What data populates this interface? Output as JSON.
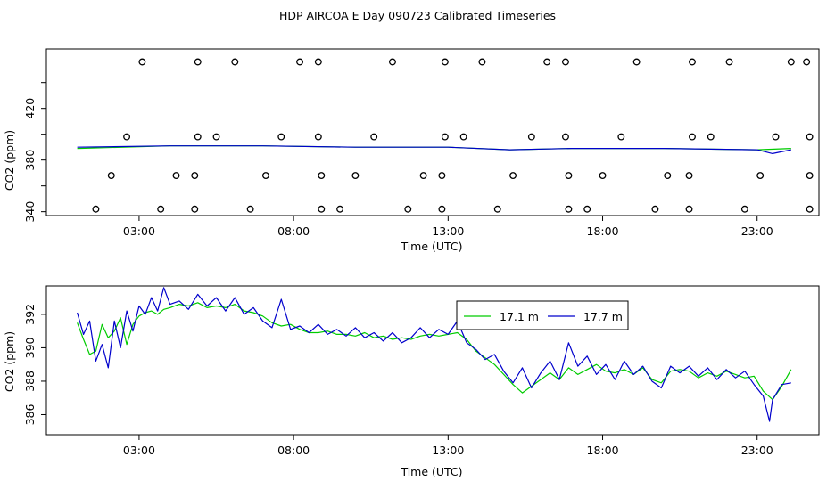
{
  "chart_data": [
    {
      "type": "scatter",
      "title": "HDP AIRCOA E  Day 090723  Calibrated Timeseries",
      "xlabel": "Time (UTC)",
      "ylabel": "CO2 (ppm)",
      "xlim": [
        0,
        25
      ],
      "ylim": [
        337,
        466
      ],
      "x_ticks": [
        3,
        8,
        13,
        18,
        23
      ],
      "x_tick_labels": [
        "03:00",
        "08:00",
        "13:00",
        "18:00",
        "23:00"
      ],
      "y_ticks": [
        340,
        380,
        420
      ],
      "y_tick_labels": [
        "340",
        "380",
        "420"
      ],
      "y_minor_ticks": [
        360,
        400,
        440
      ],
      "calibration_points": [
        {
          "x": 1.6,
          "y": 342
        },
        {
          "x": 2.1,
          "y": 368
        },
        {
          "x": 2.6,
          "y": 398
        },
        {
          "x": 3.1,
          "y": 456
        },
        {
          "x": 3.7,
          "y": 342
        },
        {
          "x": 4.2,
          "y": 368
        },
        {
          "x": 4.8,
          "y": 342
        },
        {
          "x": 4.8,
          "y": 368
        },
        {
          "x": 4.9,
          "y": 398
        },
        {
          "x": 4.9,
          "y": 456
        },
        {
          "x": 5.5,
          "y": 398
        },
        {
          "x": 6.1,
          "y": 456
        },
        {
          "x": 6.6,
          "y": 342
        },
        {
          "x": 7.1,
          "y": 368
        },
        {
          "x": 7.6,
          "y": 398
        },
        {
          "x": 8.2,
          "y": 456
        },
        {
          "x": 8.8,
          "y": 456
        },
        {
          "x": 8.8,
          "y": 398
        },
        {
          "x": 8.9,
          "y": 368
        },
        {
          "x": 8.9,
          "y": 342
        },
        {
          "x": 9.5,
          "y": 342
        },
        {
          "x": 10.0,
          "y": 368
        },
        {
          "x": 10.6,
          "y": 398
        },
        {
          "x": 11.2,
          "y": 456
        },
        {
          "x": 11.7,
          "y": 342
        },
        {
          "x": 12.2,
          "y": 368
        },
        {
          "x": 12.8,
          "y": 342
        },
        {
          "x": 12.8,
          "y": 368
        },
        {
          "x": 12.9,
          "y": 398
        },
        {
          "x": 12.9,
          "y": 456
        },
        {
          "x": 13.5,
          "y": 398
        },
        {
          "x": 14.1,
          "y": 456
        },
        {
          "x": 14.6,
          "y": 342
        },
        {
          "x": 15.1,
          "y": 368
        },
        {
          "x": 15.7,
          "y": 398
        },
        {
          "x": 16.2,
          "y": 456
        },
        {
          "x": 16.8,
          "y": 456
        },
        {
          "x": 16.8,
          "y": 398
        },
        {
          "x": 16.9,
          "y": 368
        },
        {
          "x": 16.9,
          "y": 342
        },
        {
          "x": 17.5,
          "y": 342
        },
        {
          "x": 18.0,
          "y": 368
        },
        {
          "x": 18.6,
          "y": 398
        },
        {
          "x": 19.1,
          "y": 456
        },
        {
          "x": 19.7,
          "y": 342
        },
        {
          "x": 20.1,
          "y": 368
        },
        {
          "x": 20.8,
          "y": 342
        },
        {
          "x": 20.8,
          "y": 368
        },
        {
          "x": 20.9,
          "y": 398
        },
        {
          "x": 20.9,
          "y": 456
        },
        {
          "x": 21.5,
          "y": 398
        },
        {
          "x": 22.1,
          "y": 456
        },
        {
          "x": 22.6,
          "y": 342
        },
        {
          "x": 23.1,
          "y": 368
        },
        {
          "x": 23.6,
          "y": 398
        },
        {
          "x": 24.1,
          "y": 456
        },
        {
          "x": 24.6,
          "y": 456
        },
        {
          "x": 24.7,
          "y": 398
        },
        {
          "x": 24.7,
          "y": 368
        },
        {
          "x": 24.7,
          "y": 342
        }
      ],
      "series": [
        {
          "name": "17.1 m",
          "color": "#00cc00",
          "x": [
            1,
            4,
            7,
            10,
            13,
            15,
            17,
            20,
            23,
            24.1
          ],
          "y": [
            389,
            391,
            391,
            390,
            390,
            388,
            389,
            389,
            388,
            389
          ]
        },
        {
          "name": "17.7 m",
          "color": "#0000cc",
          "x": [
            1,
            4,
            7,
            10,
            13,
            15,
            17,
            20,
            23,
            23.5,
            24.1
          ],
          "y": [
            390,
            391,
            391,
            390,
            390,
            388,
            389,
            389,
            388,
            385,
            388
          ]
        }
      ]
    },
    {
      "type": "line",
      "title": "",
      "xlabel": "Time (UTC)",
      "ylabel": "CO2 (ppm)",
      "xlim": [
        0,
        25
      ],
      "ylim": [
        384.8,
        393.7
      ],
      "x_ticks": [
        3,
        8,
        13,
        18,
        23
      ],
      "x_tick_labels": [
        "03:00",
        "08:00",
        "13:00",
        "18:00",
        "23:00"
      ],
      "y_ticks": [
        386,
        388,
        390,
        392
      ],
      "y_tick_labels": [
        "386",
        "388",
        "390",
        "392"
      ],
      "legend_position": "top-right",
      "series": [
        {
          "name": "17.1 m",
          "color": "#00cc00",
          "x": [
            1.0,
            1.2,
            1.4,
            1.6,
            1.8,
            2.0,
            2.2,
            2.4,
            2.6,
            2.8,
            3.0,
            3.2,
            3.4,
            3.6,
            3.8,
            4.0,
            4.3,
            4.6,
            4.9,
            5.2,
            5.5,
            5.8,
            6.1,
            6.4,
            6.7,
            7.0,
            7.3,
            7.6,
            7.9,
            8.2,
            8.5,
            8.8,
            9.1,
            9.4,
            9.7,
            10.0,
            10.3,
            10.6,
            10.9,
            11.2,
            11.5,
            11.8,
            12.1,
            12.4,
            12.7,
            13.0,
            13.3,
            13.6,
            13.9,
            14.2,
            14.5,
            14.8,
            15.1,
            15.4,
            15.7,
            16.0,
            16.3,
            16.6,
            16.9,
            17.2,
            17.5,
            17.8,
            18.1,
            18.4,
            18.7,
            19.0,
            19.3,
            19.6,
            19.9,
            20.2,
            20.5,
            20.8,
            21.1,
            21.4,
            21.7,
            22.0,
            22.3,
            22.6,
            22.9,
            23.2,
            23.5,
            23.8,
            24.1
          ],
          "y": [
            391.5,
            390.5,
            389.6,
            389.8,
            391.4,
            390.6,
            391.0,
            391.8,
            390.2,
            391.4,
            391.9,
            392.1,
            392.2,
            392.0,
            392.3,
            392.4,
            392.6,
            392.5,
            392.7,
            392.4,
            392.5,
            392.4,
            392.6,
            392.2,
            392.1,
            391.9,
            391.5,
            391.3,
            391.4,
            391.1,
            390.9,
            390.9,
            391.0,
            390.8,
            390.8,
            390.7,
            390.9,
            390.6,
            390.7,
            390.5,
            390.6,
            390.5,
            390.7,
            390.8,
            390.7,
            390.8,
            390.9,
            390.5,
            389.8,
            389.4,
            389.0,
            388.4,
            387.8,
            387.3,
            387.7,
            388.1,
            388.5,
            388.1,
            388.8,
            388.4,
            388.7,
            389.0,
            388.6,
            388.5,
            388.7,
            388.4,
            388.8,
            388.1,
            387.9,
            388.6,
            388.7,
            388.6,
            388.2,
            388.5,
            388.3,
            388.6,
            388.4,
            388.2,
            388.3,
            387.4,
            386.9,
            387.7,
            388.7
          ]
        },
        {
          "name": "17.7 m",
          "color": "#0000cc",
          "x": [
            1.0,
            1.2,
            1.4,
            1.6,
            1.8,
            2.0,
            2.2,
            2.4,
            2.6,
            2.8,
            3.0,
            3.2,
            3.4,
            3.6,
            3.8,
            4.0,
            4.3,
            4.6,
            4.9,
            5.2,
            5.5,
            5.8,
            6.1,
            6.4,
            6.7,
            7.0,
            7.3,
            7.6,
            7.9,
            8.2,
            8.5,
            8.8,
            9.1,
            9.4,
            9.7,
            10.0,
            10.3,
            10.6,
            10.9,
            11.2,
            11.5,
            11.8,
            12.1,
            12.4,
            12.7,
            13.0,
            13.3,
            13.6,
            13.9,
            14.2,
            14.5,
            14.8,
            15.1,
            15.4,
            15.7,
            16.0,
            16.3,
            16.6,
            16.9,
            17.2,
            17.5,
            17.8,
            18.1,
            18.4,
            18.7,
            19.0,
            19.3,
            19.6,
            19.9,
            20.2,
            20.5,
            20.8,
            21.1,
            21.4,
            21.7,
            22.0,
            22.3,
            22.6,
            22.9,
            23.2,
            23.4,
            23.5,
            23.8,
            24.1
          ],
          "y": [
            392.1,
            390.8,
            391.6,
            389.2,
            390.2,
            388.8,
            391.6,
            390.0,
            392.2,
            391.0,
            392.5,
            392.0,
            393.0,
            392.2,
            393.6,
            392.6,
            392.8,
            392.3,
            393.2,
            392.5,
            393.0,
            392.2,
            393.0,
            392.0,
            392.4,
            391.6,
            391.2,
            392.9,
            391.1,
            391.3,
            390.9,
            391.4,
            390.8,
            391.1,
            390.7,
            391.2,
            390.6,
            390.9,
            390.4,
            390.9,
            390.3,
            390.6,
            391.2,
            390.6,
            391.1,
            390.8,
            391.6,
            390.3,
            389.9,
            389.3,
            389.6,
            388.6,
            387.9,
            388.8,
            387.6,
            388.5,
            389.2,
            388.1,
            390.3,
            388.9,
            389.5,
            388.4,
            389.0,
            388.1,
            389.2,
            388.4,
            388.9,
            388.0,
            387.6,
            388.9,
            388.5,
            388.9,
            388.3,
            388.8,
            388.1,
            388.7,
            388.2,
            388.6,
            387.8,
            387.1,
            385.6,
            386.9,
            387.8,
            387.9
          ]
        }
      ]
    }
  ]
}
